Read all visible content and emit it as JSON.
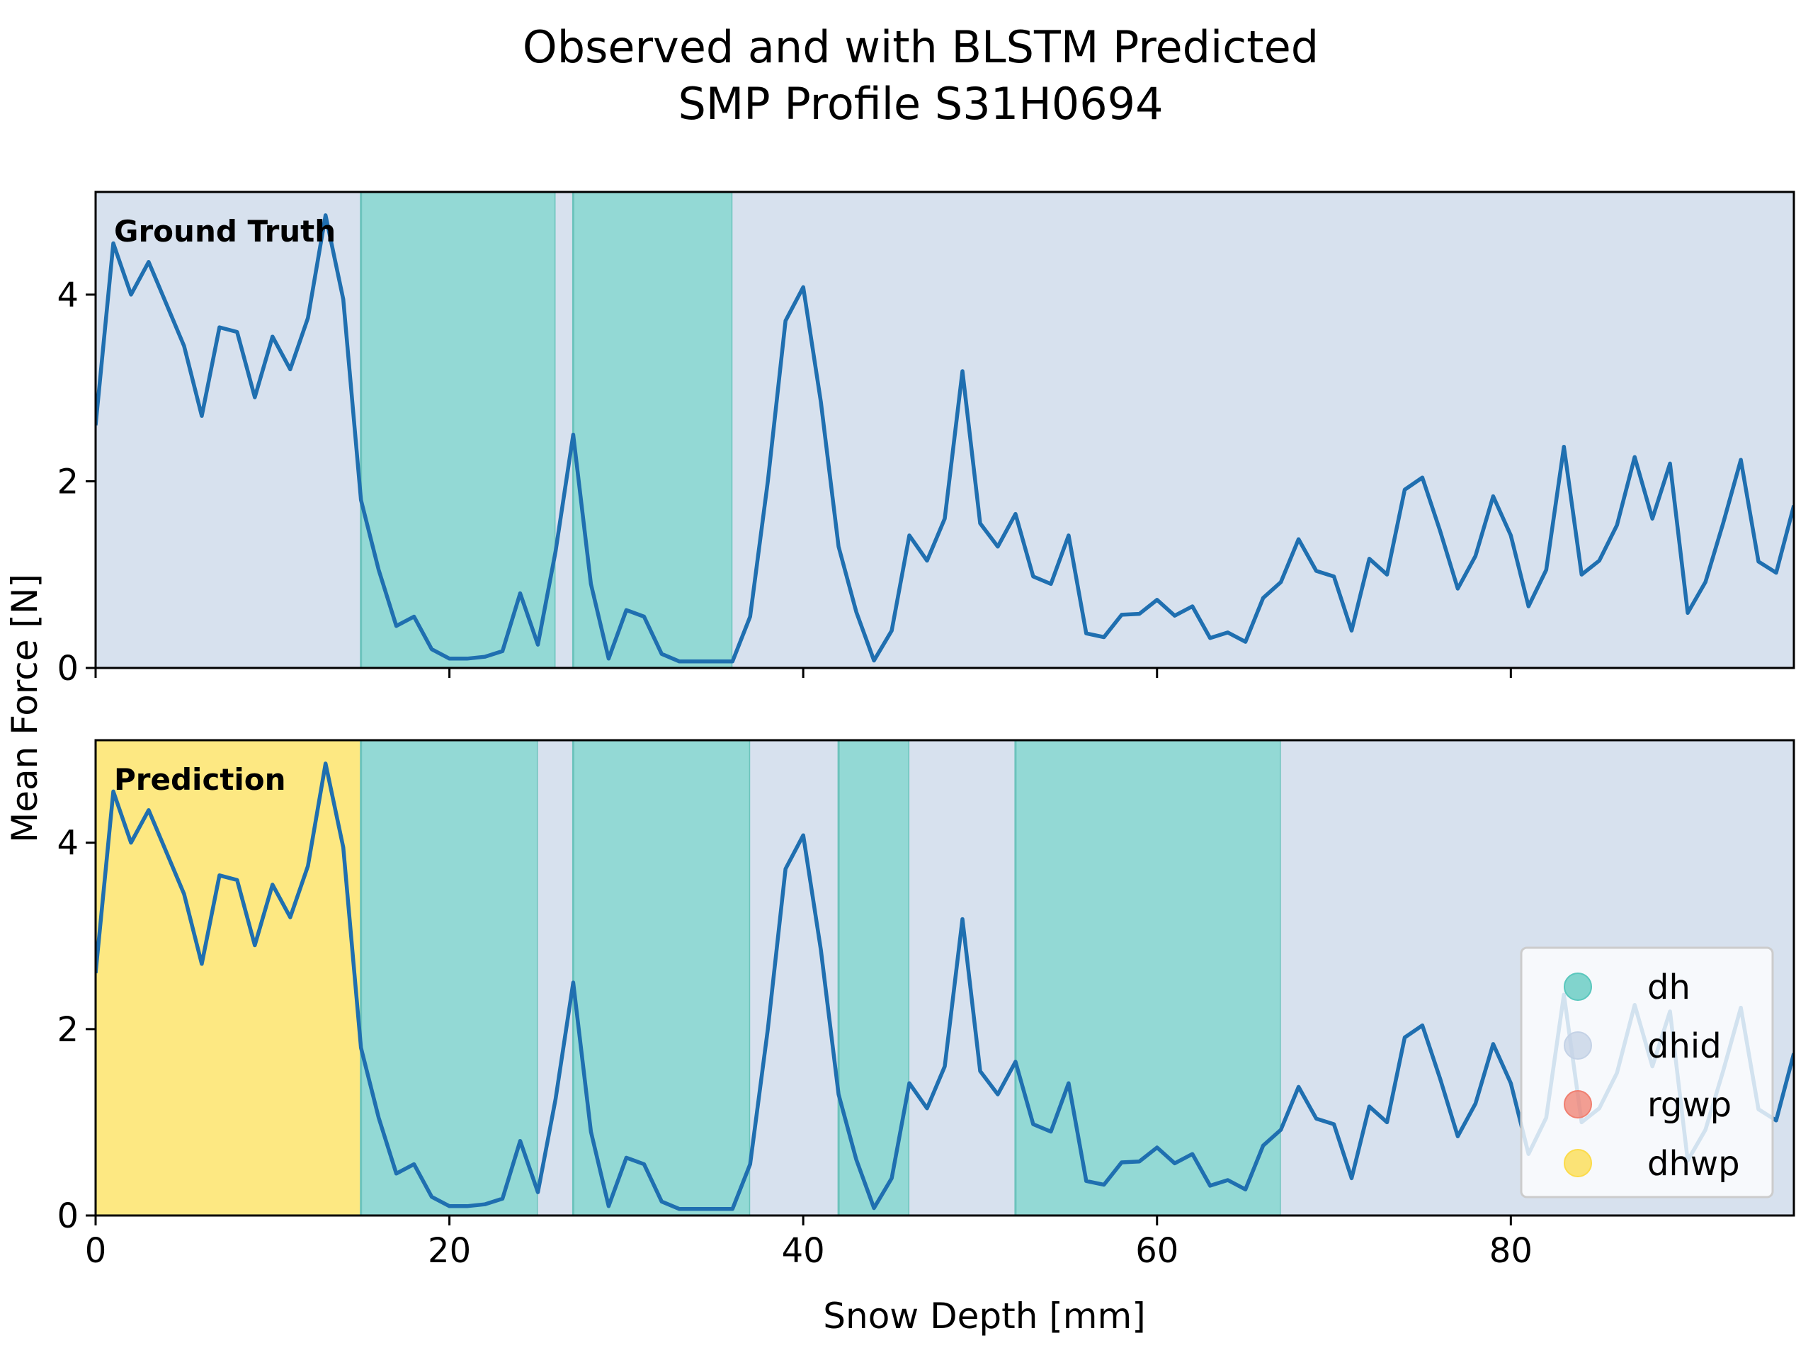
{
  "chart_data": {
    "type": "line",
    "title": "Observed and with BLSTM Predicted\nSMP Profile S31H0694",
    "xlabel": "Snow Depth [mm]",
    "ylabel": "Mean Force [N]",
    "xlim": [
      0,
      96
    ],
    "ylim": [
      0,
      5.1
    ],
    "xticks": [
      0,
      20,
      40,
      60,
      80
    ],
    "yticks": [
      0,
      2,
      4
    ],
    "grid": false,
    "legend": {
      "placement": "lower-right",
      "entries": [
        {
          "label": "dh",
          "color": "#5ac7bd"
        },
        {
          "label": "dhid",
          "color": "#c4d2e6"
        },
        {
          "label": "rgwp",
          "color": "#f07f70"
        },
        {
          "label": "dhwp",
          "color": "#fcdb4a"
        }
      ]
    },
    "class_colors": {
      "dh": "#93d9d5",
      "dhid": "#d7e1ee",
      "rgwp": "#f5b0a6",
      "dhwp": "#fde882"
    },
    "line_color": "#1f6fb0",
    "series": [
      {
        "x": [
          0,
          1,
          2,
          3,
          4,
          5,
          6,
          7,
          8,
          9,
          10,
          11,
          12,
          13,
          14,
          15,
          16,
          17,
          18,
          19,
          20,
          21,
          22,
          23,
          24,
          25,
          26,
          27,
          28,
          29,
          30,
          31,
          32,
          33,
          34,
          35,
          36,
          37,
          38,
          39,
          40,
          41,
          42,
          43,
          44,
          45,
          46,
          47,
          48,
          49,
          50,
          51,
          52,
          53,
          54,
          55,
          56,
          57,
          58,
          59,
          60,
          61,
          62,
          63,
          64,
          65,
          66,
          67,
          68,
          69,
          70,
          71,
          72,
          73,
          74,
          75,
          76,
          77,
          78,
          79,
          80,
          81,
          82,
          83,
          84,
          85,
          86,
          87,
          88,
          89,
          90,
          91,
          92,
          93,
          94,
          95,
          96
        ],
        "values": [
          2.6,
          4.55,
          4.0,
          4.35,
          3.9,
          3.45,
          2.7,
          3.65,
          3.6,
          2.9,
          3.55,
          3.2,
          3.75,
          4.85,
          3.95,
          1.8,
          1.05,
          0.45,
          0.55,
          0.2,
          0.1,
          0.1,
          0.12,
          0.18,
          0.8,
          0.25,
          1.25,
          2.5,
          0.9,
          0.1,
          0.62,
          0.55,
          0.15,
          0.07,
          0.07,
          0.07,
          0.07,
          0.55,
          2.0,
          3.72,
          4.08,
          2.85,
          1.3,
          0.6,
          0.08,
          0.4,
          1.42,
          1.15,
          1.6,
          3.18,
          1.55,
          1.3,
          1.65,
          0.98,
          0.9,
          1.42,
          0.37,
          0.33,
          0.57,
          0.58,
          0.73,
          0.56,
          0.66,
          0.32,
          0.38,
          0.28,
          0.75,
          0.92,
          1.38,
          1.04,
          0.98,
          0.4,
          1.17,
          1.0,
          1.91,
          2.04,
          1.47,
          0.85,
          1.2,
          1.84,
          1.42,
          0.66,
          1.05,
          2.37,
          1.0,
          1.15,
          1.53,
          2.26,
          1.6,
          2.19,
          0.59,
          0.92,
          1.55,
          2.23,
          1.14,
          1.02,
          1.74
        ]
      }
    ],
    "panels": [
      {
        "label": "Ground Truth",
        "segments": [
          {
            "cls": "dhid",
            "start": 0,
            "end": 15
          },
          {
            "cls": "dh",
            "start": 15,
            "end": 26
          },
          {
            "cls": "dhid",
            "start": 26,
            "end": 27
          },
          {
            "cls": "dh",
            "start": 27,
            "end": 36
          },
          {
            "cls": "dhid",
            "start": 36,
            "end": 96
          }
        ]
      },
      {
        "label": "Prediction",
        "segments": [
          {
            "cls": "dhwp",
            "start": 0,
            "end": 15
          },
          {
            "cls": "dh",
            "start": 15,
            "end": 25
          },
          {
            "cls": "dhid",
            "start": 25,
            "end": 27
          },
          {
            "cls": "dh",
            "start": 27,
            "end": 37
          },
          {
            "cls": "dhid",
            "start": 37,
            "end": 42
          },
          {
            "cls": "dh",
            "start": 42,
            "end": 46
          },
          {
            "cls": "dhid",
            "start": 46,
            "end": 52
          },
          {
            "cls": "dh",
            "start": 52,
            "end": 67
          },
          {
            "cls": "dhid",
            "start": 67,
            "end": 96
          }
        ]
      }
    ]
  }
}
